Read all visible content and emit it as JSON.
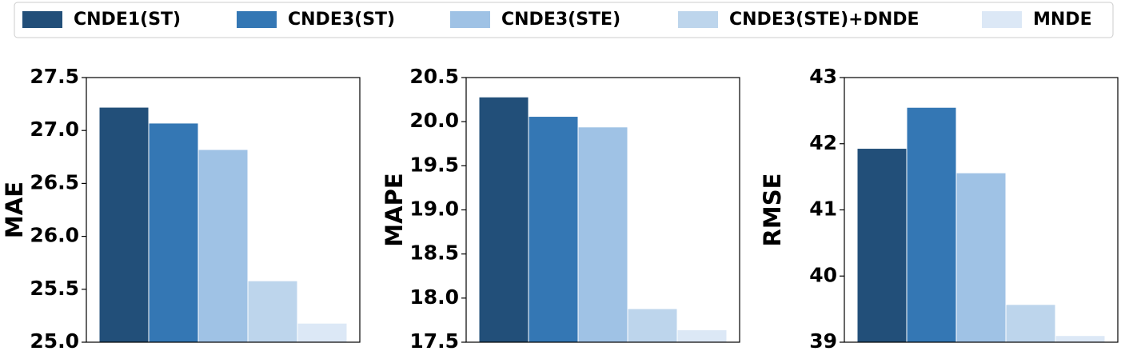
{
  "legend": {
    "series": [
      {
        "name": "CNDE1(ST)",
        "color": "#224f79"
      },
      {
        "name": "CNDE3(ST)",
        "color": "#3477b4"
      },
      {
        "name": "CNDE3(STE)",
        "color": "#9fc2e5"
      },
      {
        "name": "CNDE3(STE)+DNDE",
        "color": "#bdd5ec"
      },
      {
        "name": "MNDE",
        "color": "#dce8f6"
      }
    ]
  },
  "chart_data": [
    {
      "type": "bar",
      "ylabel": "MAE",
      "values": [
        27.22,
        27.07,
        26.82,
        25.58,
        25.18
      ],
      "ylim": [
        25,
        27.5
      ],
      "yticks": [
        {
          "value": 25,
          "label": "25.0"
        },
        25.5,
        {
          "value": 26,
          "label": "26.0"
        },
        26.5,
        {
          "value": 27,
          "label": "27.0"
        },
        27.5
      ]
    },
    {
      "type": "bar",
      "ylabel": "MAPE",
      "values": [
        20.28,
        20.06,
        19.94,
        17.88,
        17.64
      ],
      "ylim": [
        17.5,
        20.5
      ],
      "yticks": [
        17.5,
        {
          "value": 18,
          "label": "18.0"
        },
        18.5,
        {
          "value": 19,
          "label": "19.0"
        },
        19.5,
        {
          "value": 20,
          "label": "20.0"
        },
        20.5
      ]
    },
    {
      "type": "bar",
      "ylabel": "RMSE",
      "values": [
        41.93,
        42.55,
        41.56,
        39.57,
        39.1
      ],
      "ylim": [
        39,
        43
      ],
      "yticks": [
        39,
        40,
        41,
        42,
        43
      ]
    }
  ]
}
